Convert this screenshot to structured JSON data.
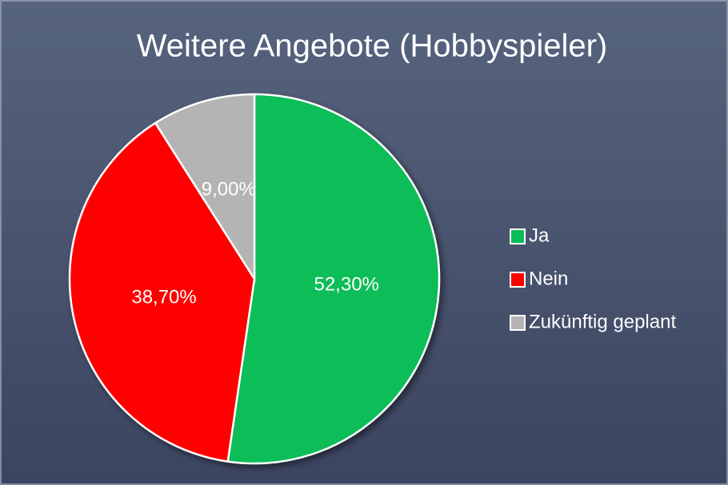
{
  "chart_data": {
    "type": "pie",
    "title": "Weitere Angebote (Hobbyspieler)",
    "categories": [
      "Ja",
      "Nein",
      "Zukünftig geplant"
    ],
    "values": [
      52.3,
      38.7,
      9.0
    ],
    "value_labels": [
      "52,30%",
      "38,70%",
      "9,00%"
    ],
    "colors": [
      "#08bd58",
      "#fe0000",
      "#b4b4b4"
    ],
    "legend": "right"
  }
}
